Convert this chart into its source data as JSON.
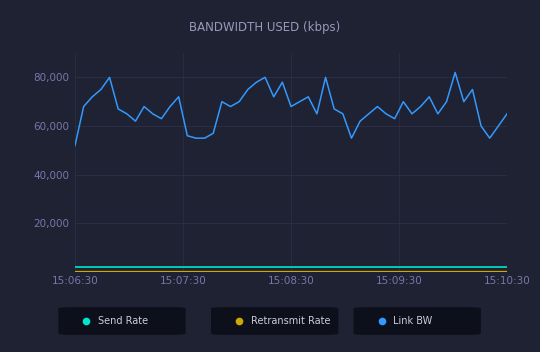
{
  "title": "BANDWIDTH USED (kbps)",
  "bg_color": "#1e2232",
  "title_bg_color": "#282d3f",
  "plot_bg_color": "#1e2232",
  "grid_color": "#2e3450",
  "text_color": "#9999bb",
  "tick_label_color": "#7777aa",
  "ylim": [
    0,
    90000
  ],
  "yticks": [
    20000,
    40000,
    60000,
    80000
  ],
  "xtick_labels": [
    "15:06:30",
    "15:07:30",
    "15:08:30",
    "15:09:30",
    "15:10:30"
  ],
  "send_rate_color": "#00e5cc",
  "retransmit_rate_color": "#ccaa00",
  "link_bw_color": "#3399ff",
  "legend_bg": "#0d0f1a",
  "legend_text_color": "#ccccdd",
  "send_rate_value": 2200,
  "retransmit_rate_value": 600,
  "link_bw_data": [
    52000,
    68000,
    72000,
    75000,
    80000,
    67000,
    65000,
    62000,
    68000,
    65000,
    63000,
    68000,
    72000,
    56000,
    55000,
    55000,
    57000,
    70000,
    68000,
    70000,
    75000,
    78000,
    80000,
    72000,
    78000,
    68000,
    70000,
    72000,
    65000,
    80000,
    67000,
    65000,
    55000,
    62000,
    65000,
    68000,
    65000,
    63000,
    70000,
    65000,
    68000,
    72000,
    65000,
    70000,
    82000,
    70000,
    75000,
    60000,
    55000,
    60000,
    65000
  ]
}
